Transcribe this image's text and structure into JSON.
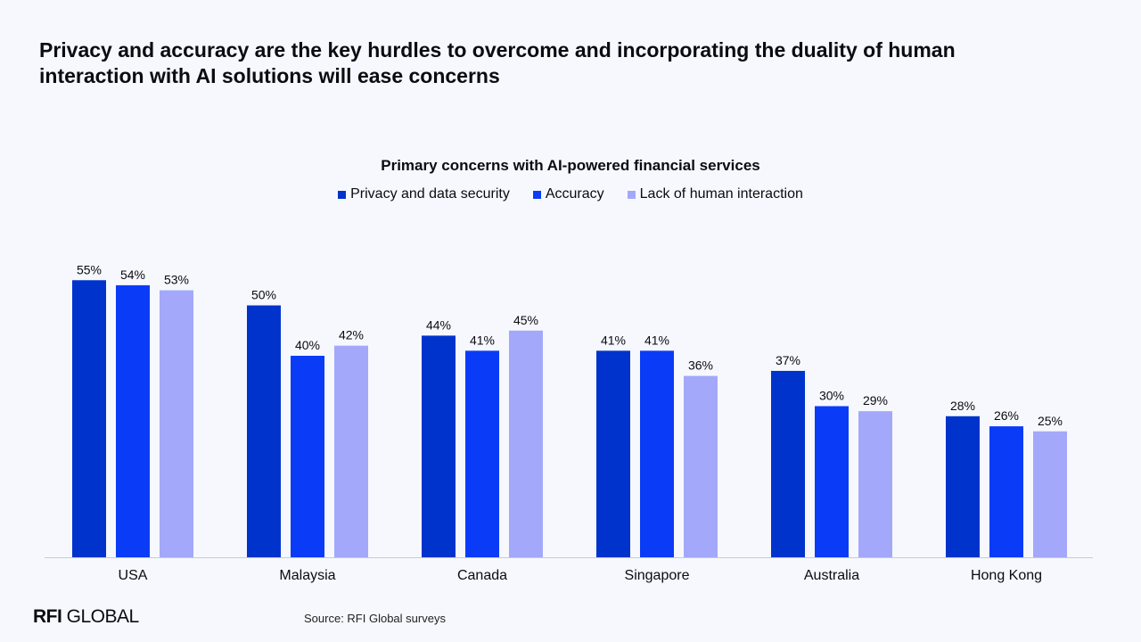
{
  "headline": "Privacy and accuracy are the key hurdles to overcome and incorporating the duality of human interaction with AI solutions will ease concerns",
  "footer": {
    "brand_bold": "RFI",
    "brand_rest": " GLOBAL",
    "source": "Source: RFI Global surveys"
  },
  "chart_data": {
    "type": "bar",
    "title": "Primary concerns with AI-powered financial services",
    "xlabel": "",
    "ylabel": "",
    "ylim": [
      0,
      60
    ],
    "grid": false,
    "legend_position": "top-center",
    "value_suffix": "%",
    "categories": [
      "USA",
      "Malaysia",
      "Canada",
      "Singapore",
      "Australia",
      "Hong Kong"
    ],
    "series": [
      {
        "name": "Privacy and data security",
        "color": "#0033cc",
        "values": [
          55,
          50,
          44,
          41,
          37,
          28
        ]
      },
      {
        "name": "Accuracy",
        "color": "#0a3cf7",
        "values": [
          54,
          40,
          41,
          41,
          30,
          26
        ]
      },
      {
        "name": "Lack of human interaction",
        "color": "#a3a8fa",
        "values": [
          53,
          42,
          45,
          36,
          29,
          25
        ]
      }
    ]
  }
}
